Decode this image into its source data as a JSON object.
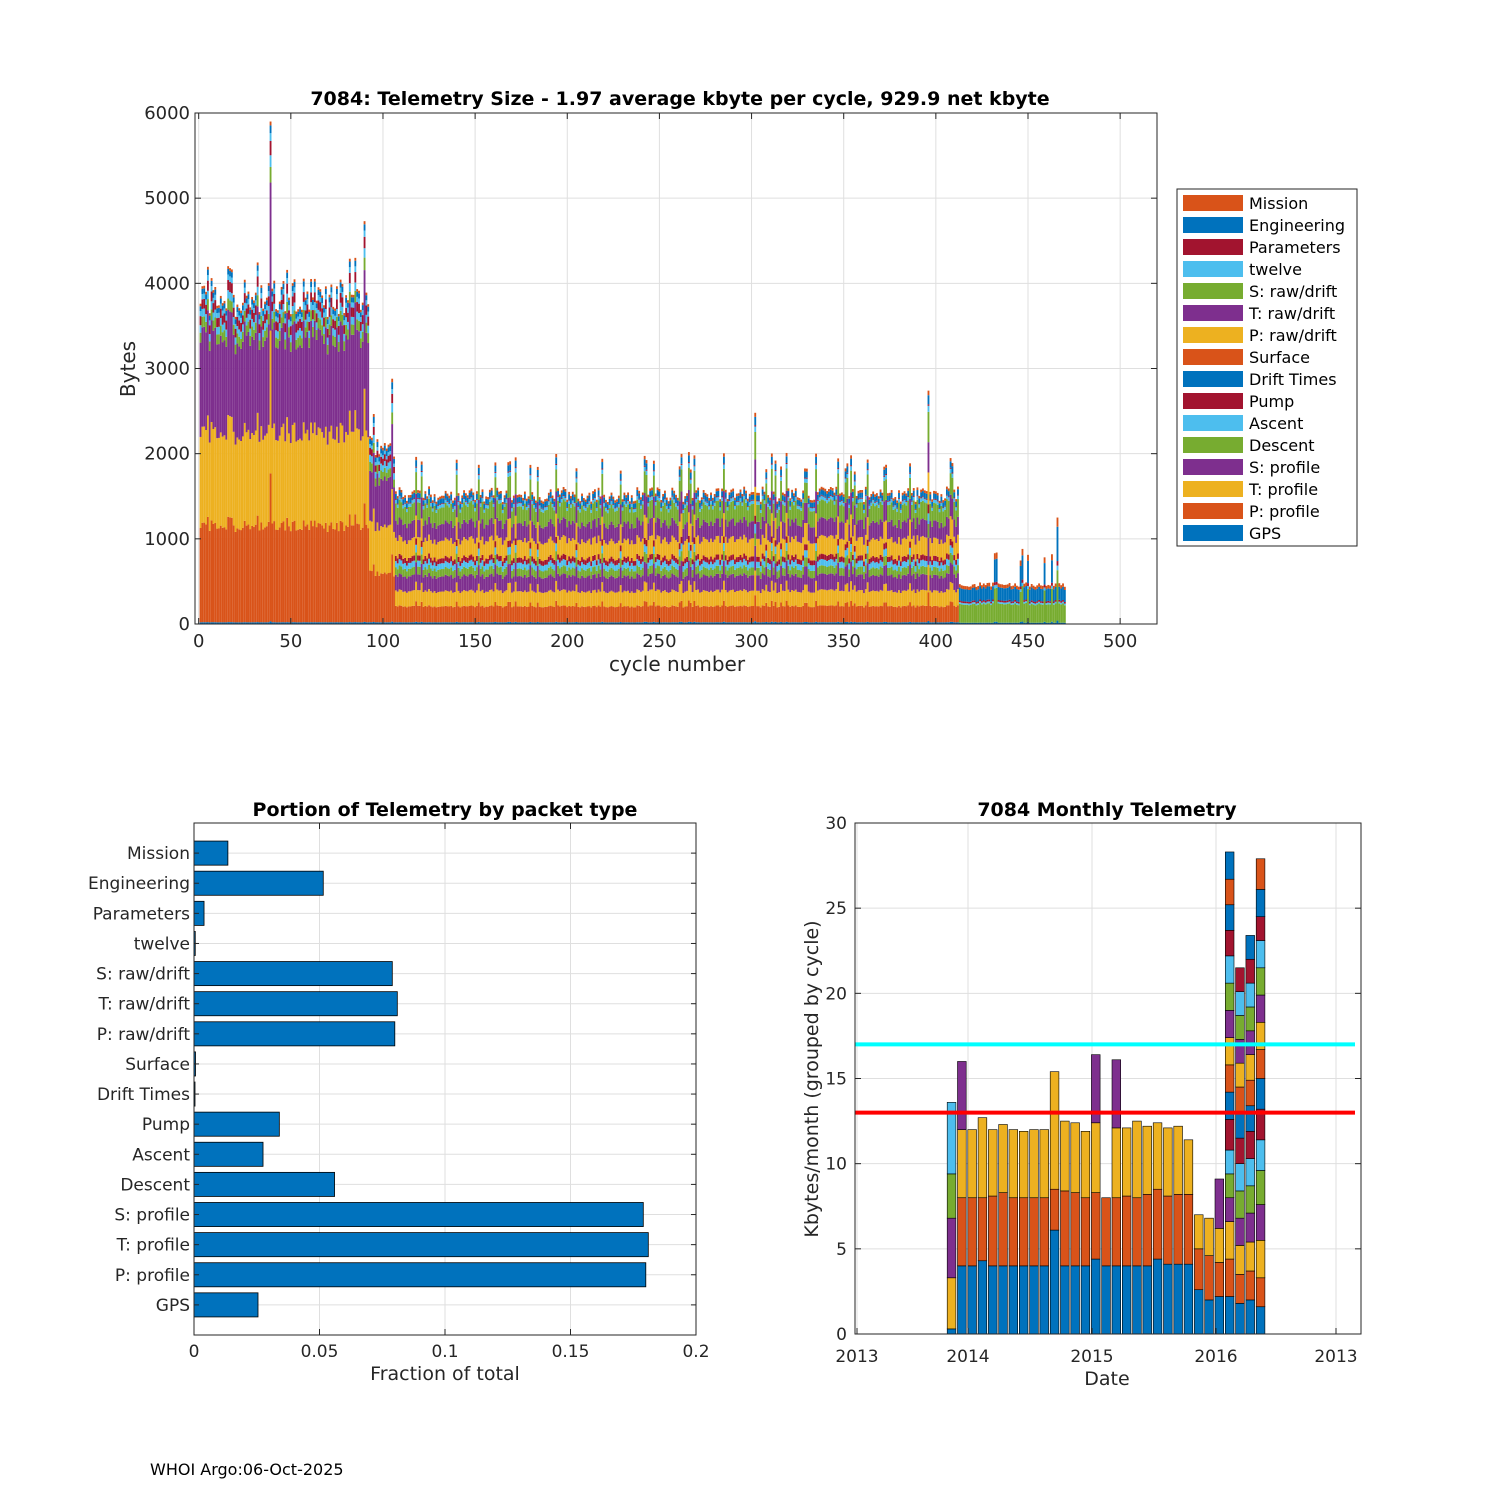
{
  "footer": "WHOI Argo:06-Oct-2025",
  "chart_data": [
    {
      "type": "stacked-bar",
      "title": "7084: Telemetry Size - 1.97 average kbyte per cycle,  929.9 net kbyte",
      "xlabel": "cycle number",
      "ylabel": "Bytes",
      "xlim": [
        -2,
        520
      ],
      "ylim": [
        0,
        6000
      ],
      "xticks": [
        0,
        50,
        100,
        150,
        200,
        250,
        300,
        350,
        400,
        450,
        500
      ],
      "yticks": [
        0,
        1000,
        2000,
        3000,
        4000,
        5000,
        6000
      ],
      "grid": true,
      "legend_position": "outside-right",
      "legend": [
        {
          "name": "Mission",
          "color": "#D95319"
        },
        {
          "name": "Engineering",
          "color": "#0072BD"
        },
        {
          "name": "Parameters",
          "color": "#A2142F"
        },
        {
          "name": "twelve",
          "color": "#4DBEEE"
        },
        {
          "name": "S: raw/drift",
          "color": "#77AC30"
        },
        {
          "name": "T: raw/drift",
          "color": "#7E2F8E"
        },
        {
          "name": "P: raw/drift",
          "color": "#EDB120"
        },
        {
          "name": "Surface",
          "color": "#D95319"
        },
        {
          "name": "Drift Times",
          "color": "#0072BD"
        },
        {
          "name": "Pump",
          "color": "#A2142F"
        },
        {
          "name": "Ascent",
          "color": "#4DBEEE"
        },
        {
          "name": "Descent",
          "color": "#77AC30"
        },
        {
          "name": "S: profile",
          "color": "#7E2F8E"
        },
        {
          "name": "T: profile",
          "color": "#EDB120"
        },
        {
          "name": "P: profile",
          "color": "#D95319"
        },
        {
          "name": "GPS",
          "color": "#0072BD"
        }
      ],
      "bottom_up_order": [
        "GPS",
        "P: profile",
        "T: profile",
        "S: profile",
        "Descent",
        "Ascent",
        "Pump",
        "Drift Times",
        "Surface",
        "P: raw/drift",
        "T: raw/drift",
        "S: raw/drift",
        "twelve",
        "Parameters",
        "Engineering",
        "Mission"
      ],
      "phases": [
        {
          "cycles": [
            1,
            92
          ],
          "GPS": 20,
          "P: profile": 1140,
          "T: profile": 1100,
          "S: profile": 1140,
          "Descent": 120,
          "Ascent": 90,
          "Pump": 110,
          "P: raw/drift": 0,
          "T: raw/drift": 0,
          "S: raw/drift": 0,
          "twelve": 60,
          "Parameters": 0,
          "Engineering": 60,
          "Mission": 30
        },
        {
          "cycles": [
            93,
            106
          ],
          "GPS": 20,
          "P: profile": 580,
          "T: profile": 560,
          "S: profile": 560,
          "Descent": 100,
          "Ascent": 80,
          "Pump": 80,
          "P: raw/drift": 0,
          "T: raw/drift": 0,
          "S: raw/drift": 0,
          "twelve": 40,
          "Parameters": 0,
          "Engineering": 60,
          "Mission": 30
        },
        {
          "cycles": [
            107,
            412
          ],
          "GPS": 20,
          "P: profile": 190,
          "T: profile": 180,
          "S: profile": 180,
          "Descent": 90,
          "Ascent": 70,
          "Pump": 60,
          "P: raw/drift": 210,
          "T: raw/drift": 200,
          "S: raw/drift": 200,
          "twelve": 40,
          "Parameters": 10,
          "Engineering": 60,
          "Mission": 30
        },
        {
          "cycles": [
            413,
            470
          ],
          "GPS": 15,
          "P: profile": 0,
          "T: profile": 0,
          "S: profile": 0,
          "Descent": 0,
          "Ascent": 0,
          "Pump": 0,
          "P: raw/drift": 0,
          "T: raw/drift": 0,
          "S: raw/drift": 220,
          "twelve": 20,
          "Parameters": 20,
          "Engineering": 150,
          "Mission": 40
        }
      ],
      "spikes": [
        {
          "cycle": 39,
          "total": 5900
        },
        {
          "cycle": 90,
          "total": 4730
        },
        {
          "cycle": 105,
          "total": 2880
        },
        {
          "cycle": 302,
          "total": 2480
        },
        {
          "cycle": 396,
          "total": 2740
        },
        {
          "cycle": 466,
          "total": 1250
        }
      ]
    },
    {
      "type": "barh",
      "title": "Portion of Telemetry by packet type",
      "xlabel": "Fraction of total",
      "ylabel": "",
      "xlim": [
        0,
        0.2
      ],
      "xticks": [
        0,
        0.05,
        0.1,
        0.15,
        0.2
      ],
      "xticklabels": [
        "0",
        "0.05",
        "0.1",
        "0.15",
        "0.2"
      ],
      "grid": true,
      "color": "#0072BD",
      "categories": [
        "Mission",
        "Engineering",
        "Parameters",
        "twelve",
        "S: raw/drift",
        "T: raw/drift",
        "P: raw/drift",
        "Surface",
        "Drift Times",
        "Pump",
        "Ascent",
        "Descent",
        "S: profile",
        "T: profile",
        "P: profile",
        "GPS"
      ],
      "values": [
        0.0135,
        0.0515,
        0.004,
        0.0005,
        0.079,
        0.081,
        0.08,
        0.0006,
        0.0004,
        0.034,
        0.0275,
        0.056,
        0.179,
        0.181,
        0.18,
        0.0255
      ]
    },
    {
      "type": "stacked-bar",
      "title": "7084 Monthly Telemetry",
      "xlabel": "Date",
      "ylabel": "Kbytes/month (grouped by cycle)",
      "ylim": [
        0,
        30
      ],
      "yticks": [
        0,
        5,
        10,
        15,
        20,
        25,
        30
      ],
      "xticklabels": [
        "2013",
        "2014",
        "2015",
        "2016",
        "2013"
      ],
      "grid": true,
      "months_start": "2013-01",
      "bottom_up_order": [
        "GPS",
        "P: profile",
        "T: profile",
        "S: profile",
        "Descent",
        "Ascent",
        "Pump",
        "Drift Times",
        "Surface",
        "P: raw/drift",
        "T: raw/drift",
        "S: raw/drift",
        "twelve",
        "Parameters",
        "Engineering",
        "Mission"
      ],
      "segments_by_month": [
        [
          0
        ],
        [
          0
        ],
        [
          0
        ],
        [
          0
        ],
        [
          0
        ],
        [
          0
        ],
        [
          0
        ],
        [
          0
        ],
        [
          0.3,
          0,
          3.0,
          3.5,
          2.6,
          4.2
        ],
        [
          4.0,
          4.0,
          4.0,
          4.0
        ],
        [
          4.0,
          4.0,
          4.0
        ],
        [
          4.3,
          3.7,
          4.7
        ],
        [
          4.0,
          4.1,
          3.9
        ],
        [
          4.0,
          4.3,
          4.0
        ],
        [
          4.0,
          4.0,
          4.0
        ],
        [
          4.0,
          4.0,
          3.9
        ],
        [
          4.0,
          4.0,
          4.0
        ],
        [
          4.0,
          4.0,
          4.0
        ],
        [
          6.1,
          2.4,
          6.9
        ],
        [
          4.0,
          4.4,
          4.1
        ],
        [
          4.0,
          4.3,
          4.1
        ],
        [
          4.0,
          4.0,
          3.9
        ],
        [
          4.4,
          3.9,
          4.1,
          4.0
        ],
        [
          4.0,
          4.0
        ],
        [
          4.0,
          4.0,
          4.1,
          4.0
        ],
        [
          4.0,
          4.1,
          4.0
        ],
        [
          4.0,
          4.0,
          4.5
        ],
        [
          4.0,
          4.2,
          4.0
        ],
        [
          4.4,
          4.1,
          3.9
        ],
        [
          4.1,
          4.0,
          4.0
        ],
        [
          4.1,
          4.1,
          4.0
        ],
        [
          4.1,
          4.1,
          3.2
        ],
        [
          2.6,
          2.4,
          2.0
        ],
        [
          2.0,
          2.6,
          2.2
        ],
        [
          2.2,
          2.0,
          2.0,
          2.9
        ],
        [
          2.2,
          2.2,
          2.2,
          1.4,
          1.4,
          1.4,
          1.8,
          1.6,
          1.6,
          1.6,
          1.6,
          1.6,
          1.6,
          1.5,
          1.5,
          1.5,
          1.6
        ],
        [
          1.8,
          1.7,
          1.7,
          1.6,
          1.6,
          1.6,
          1.5,
          1.5,
          1.5,
          1.4,
          1.4,
          1.4,
          1.4,
          1.4
        ],
        [
          2.0,
          1.7,
          1.7,
          1.7,
          1.6,
          1.6,
          1.6,
          1.5,
          1.5,
          1.5,
          1.4,
          1.4,
          1.4,
          1.4,
          1.4
        ],
        [
          1.6,
          1.7,
          2.2,
          2.1,
          2.0,
          1.8,
          1.8,
          1.8,
          1.7,
          1.6,
          1.6,
          1.6,
          1.6,
          1.4,
          1.6,
          1.8
        ],
        [
          0
        ],
        [
          0
        ],
        [
          0
        ]
      ],
      "hlines": [
        {
          "y": 17,
          "color": "#00FFFF"
        },
        {
          "y": 13,
          "color": "#FF0000"
        }
      ]
    }
  ]
}
